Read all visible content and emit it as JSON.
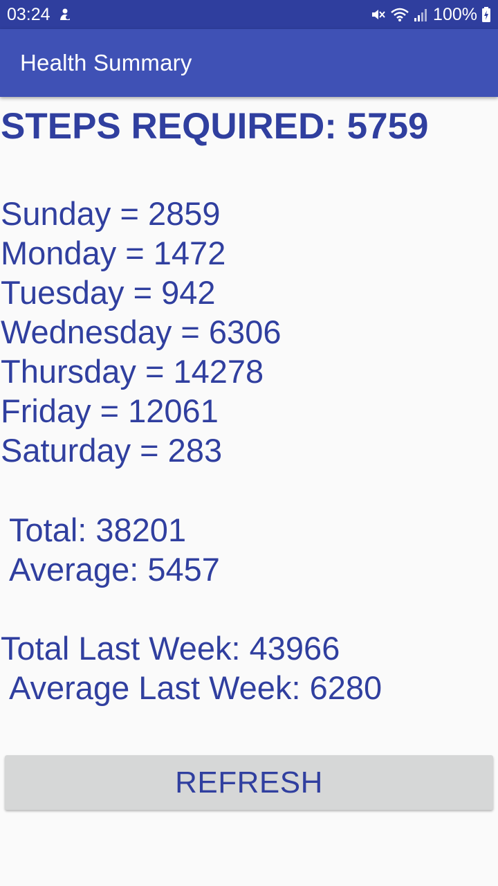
{
  "status_bar": {
    "time": "03:24",
    "battery_percent": "100%",
    "icons": [
      "notification-icon",
      "mute-icon",
      "wifi-icon",
      "signal-icon",
      "battery-charging-icon"
    ]
  },
  "app_bar": {
    "title": "Health Summary"
  },
  "summary": {
    "steps_required": "STEPS REQUIRED: 5759",
    "days": [
      "Sunday = 2859",
      "Monday = 1472",
      "Tuesday = 942",
      "Wednesday = 6306",
      "Thursday = 14278",
      "Friday = 12061",
      "Saturday = 283"
    ],
    "total": "Total: 38201",
    "average": "Average: 5457",
    "total_last_week": "Total Last Week: 43966",
    "average_last_week": "Average Last Week: 6280"
  },
  "actions": {
    "refresh_label": "REFRESH"
  },
  "colors": {
    "status_bar": "#2f3e9e",
    "app_bar": "#3f51b5",
    "text": "#303f9f",
    "background": "#fafafa",
    "button": "#d6d7d7"
  }
}
